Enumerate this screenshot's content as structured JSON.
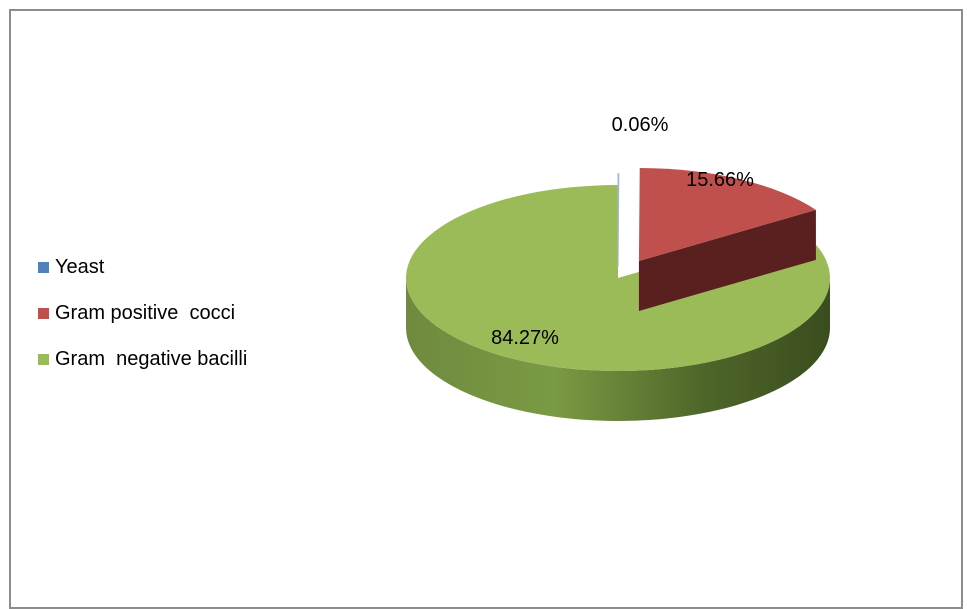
{
  "chart_data": {
    "type": "pie",
    "title": "",
    "style": "3d-exploded",
    "legend_position": "left",
    "slices": [
      {
        "label": "Yeast",
        "value": 0.06,
        "display": "0.06%",
        "color": "#4f81bd"
      },
      {
        "label": "Gram positive  cocci",
        "value": 15.66,
        "display": "15.66%",
        "color": "#c0504d"
      },
      {
        "label": "Gram  negative bacilli",
        "value": 84.27,
        "display": "84.27%",
        "color": "#9bbb59"
      }
    ]
  }
}
